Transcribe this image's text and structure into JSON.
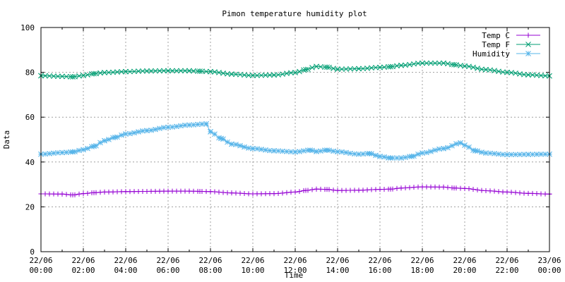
{
  "chart_data": {
    "type": "line",
    "title": "Pimon temperature   humidity plot",
    "xlabel": "Time",
    "ylabel": "Data",
    "ylim": [
      0,
      100
    ],
    "yticks": [
      0,
      20,
      40,
      60,
      80,
      100
    ],
    "xlim_hours": [
      0,
      24
    ],
    "xticks": [
      {
        "hour": 0,
        "label": [
          "22/06",
          "00:00"
        ]
      },
      {
        "hour": 2,
        "label": [
          "22/06",
          "02:00"
        ]
      },
      {
        "hour": 4,
        "label": [
          "22/06",
          "04:00"
        ]
      },
      {
        "hour": 6,
        "label": [
          "22/06",
          "06:00"
        ]
      },
      {
        "hour": 8,
        "label": [
          "22/06",
          "08:00"
        ]
      },
      {
        "hour": 10,
        "label": [
          "22/06",
          "10:00"
        ]
      },
      {
        "hour": 12,
        "label": [
          "22/06",
          "12:00"
        ]
      },
      {
        "hour": 14,
        "label": [
          "22/06",
          "14:00"
        ]
      },
      {
        "hour": 16,
        "label": [
          "22/06",
          "16:00"
        ]
      },
      {
        "hour": 18,
        "label": [
          "22/06",
          "18:00"
        ]
      },
      {
        "hour": 20,
        "label": [
          "22/06",
          "20:00"
        ]
      },
      {
        "hour": 22,
        "label": [
          "22/06",
          "22:00"
        ]
      },
      {
        "hour": 24,
        "label": [
          "23/06",
          "00:00"
        ]
      }
    ],
    "grid": true,
    "legend_position": "top-right",
    "series": [
      {
        "name": "Temp C",
        "color": "#9400d3",
        "marker": "plus",
        "points": [
          [
            0,
            25.8
          ],
          [
            1,
            25.7
          ],
          [
            1.5,
            25.3
          ],
          [
            2,
            25.9
          ],
          [
            2.5,
            26.3
          ],
          [
            3,
            26.6
          ],
          [
            4,
            26.8
          ],
          [
            5,
            26.9
          ],
          [
            6,
            27.0
          ],
          [
            7,
            27.0
          ],
          [
            7.5,
            26.9
          ],
          [
            8,
            26.8
          ],
          [
            9,
            26.2
          ],
          [
            10,
            25.8
          ],
          [
            11,
            25.9
          ],
          [
            12,
            26.6
          ],
          [
            12.5,
            27.3
          ],
          [
            13,
            27.9
          ],
          [
            13.5,
            27.8
          ],
          [
            14,
            27.3
          ],
          [
            15,
            27.4
          ],
          [
            16,
            27.8
          ],
          [
            16.5,
            27.9
          ],
          [
            17,
            28.4
          ],
          [
            18,
            28.9
          ],
          [
            19,
            28.8
          ],
          [
            19.5,
            28.4
          ],
          [
            20,
            28.2
          ],
          [
            21,
            27.2
          ],
          [
            22,
            26.6
          ],
          [
            23,
            26.0
          ],
          [
            24,
            25.7
          ]
        ]
      },
      {
        "name": "Temp F",
        "color": "#009e73",
        "marker": "x",
        "points": [
          [
            0,
            78.5
          ],
          [
            1,
            78.2
          ],
          [
            1.5,
            78.0
          ],
          [
            2,
            78.6
          ],
          [
            2.5,
            79.4
          ],
          [
            3,
            79.9
          ],
          [
            4,
            80.3
          ],
          [
            5,
            80.6
          ],
          [
            6,
            80.7
          ],
          [
            7,
            80.7
          ],
          [
            7.5,
            80.5
          ],
          [
            8,
            80.3
          ],
          [
            9,
            79.2
          ],
          [
            10,
            78.6
          ],
          [
            11,
            78.8
          ],
          [
            12,
            79.9
          ],
          [
            12.5,
            81.2
          ],
          [
            13,
            82.6
          ],
          [
            13.5,
            82.3
          ],
          [
            14,
            81.4
          ],
          [
            15,
            81.6
          ],
          [
            16,
            82.2
          ],
          [
            16.5,
            82.5
          ],
          [
            17,
            83.1
          ],
          [
            18,
            84.1
          ],
          [
            19,
            84.1
          ],
          [
            19.5,
            83.4
          ],
          [
            20,
            82.8
          ],
          [
            21,
            81.2
          ],
          [
            22,
            80.0
          ],
          [
            23,
            78.9
          ],
          [
            24,
            78.4
          ]
        ]
      },
      {
        "name": "Humidity",
        "color": "#56b4e9",
        "marker": "star",
        "points": [
          [
            0,
            43.5
          ],
          [
            1,
            44.2
          ],
          [
            1.5,
            44.5
          ],
          [
            2,
            45.5
          ],
          [
            2.5,
            47.0
          ],
          [
            3,
            49.5
          ],
          [
            3.5,
            51.0
          ],
          [
            4,
            52.5
          ],
          [
            5,
            54.0
          ],
          [
            6,
            55.5
          ],
          [
            7,
            56.5
          ],
          [
            7.8,
            57.0
          ],
          [
            8,
            53.5
          ],
          [
            8.5,
            50.5
          ],
          [
            9,
            48.0
          ],
          [
            10,
            46.0
          ],
          [
            11,
            45.0
          ],
          [
            12,
            44.5
          ],
          [
            12.7,
            45.3
          ],
          [
            13,
            44.7
          ],
          [
            13.5,
            45.3
          ],
          [
            14,
            44.6
          ],
          [
            15,
            43.5
          ],
          [
            15.5,
            43.8
          ],
          [
            16,
            42.5
          ],
          [
            16.5,
            41.8
          ],
          [
            17,
            41.8
          ],
          [
            17.5,
            42.5
          ],
          [
            18,
            44.0
          ],
          [
            19,
            46.0
          ],
          [
            19.8,
            48.5
          ],
          [
            20,
            47.5
          ],
          [
            20.5,
            45.0
          ],
          [
            21,
            44.0
          ],
          [
            22,
            43.3
          ],
          [
            23,
            43.4
          ],
          [
            24,
            43.5
          ]
        ]
      }
    ]
  }
}
